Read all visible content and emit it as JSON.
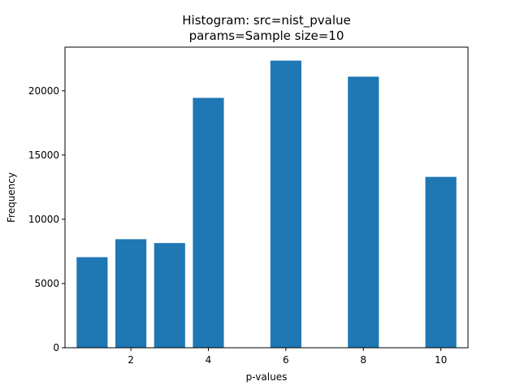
{
  "chart_data": {
    "type": "bar",
    "title": "Histogram: src=nist_pvalue",
    "subtitle": "params=Sample size=10",
    "xlabel": "p-values",
    "ylabel": "Frequency",
    "x": [
      1,
      2,
      3,
      4,
      6,
      8,
      10
    ],
    "values": [
      7050,
      8450,
      8150,
      19450,
      22350,
      21100,
      13300
    ],
    "xlim": [
      0.3,
      10.7
    ],
    "ylim": [
      0,
      23400
    ],
    "xticks": [
      2,
      4,
      6,
      8,
      10
    ],
    "yticks": [
      0,
      5000,
      10000,
      15000,
      20000
    ],
    "bar_width": 0.8,
    "bar_color": "#1f77b4",
    "grid": false,
    "legend": "none"
  }
}
